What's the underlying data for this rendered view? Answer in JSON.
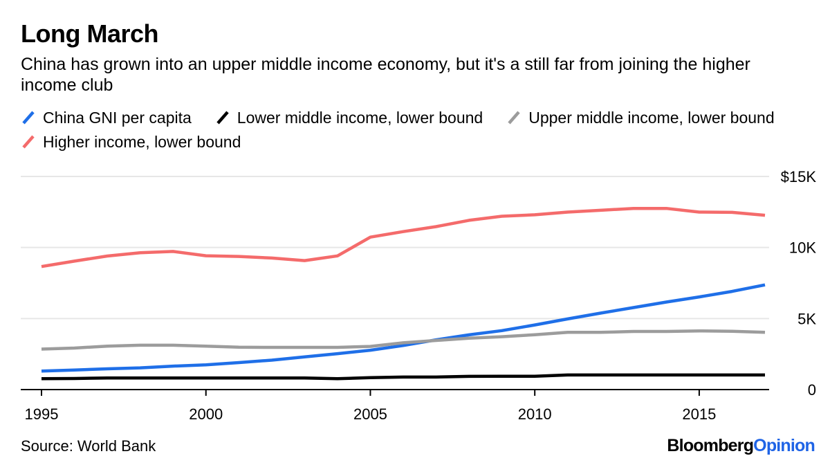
{
  "title": "Long March",
  "subtitle": "China has grown into an upper middle income economy, but it's a still far from joining the higher income club",
  "source": "Source: World Bank",
  "brand": {
    "part1": "Bloomberg",
    "part2": "Opinion"
  },
  "chart_data": {
    "type": "line",
    "title": "Long March",
    "xlabel": "",
    "ylabel": "",
    "xlim": [
      1995,
      2017
    ],
    "ylim": [
      0,
      15000
    ],
    "x_ticks": [
      1995,
      2000,
      2005,
      2010,
      2015
    ],
    "y_ticks": [
      {
        "value": 0,
        "label": "0"
      },
      {
        "value": 5000,
        "label": "5K"
      },
      {
        "value": 10000,
        "label": "10K"
      },
      {
        "value": 15000,
        "label": "$15K"
      }
    ],
    "grid": "horizontal",
    "legend_position": "top",
    "x": [
      1995,
      1996,
      1997,
      1998,
      1999,
      2000,
      2001,
      2002,
      2003,
      2004,
      2005,
      2006,
      2007,
      2008,
      2009,
      2010,
      2011,
      2012,
      2013,
      2014,
      2015,
      2016,
      2017
    ],
    "series": [
      {
        "name": "China GNI per capita",
        "color": "#1f6fe8",
        "values": [
          1300,
          1380,
          1460,
          1530,
          1650,
          1740,
          1900,
          2070,
          2300,
          2530,
          2770,
          3100,
          3500,
          3850,
          4150,
          4550,
          4970,
          5380,
          5770,
          6160,
          6520,
          6910,
          7370
        ]
      },
      {
        "name": "Lower middle income, lower bound",
        "color": "#000000",
        "values": [
          770,
          780,
          820,
          820,
          820,
          820,
          820,
          820,
          820,
          770,
          840,
          880,
          880,
          930,
          940,
          940,
          1030,
          1030,
          1030,
          1030,
          1030,
          1030,
          1030
        ]
      },
      {
        "name": "Upper middle income, lower bound",
        "color": "#9c9c9c",
        "values": [
          2850,
          2920,
          3060,
          3120,
          3120,
          3060,
          2980,
          2970,
          2970,
          2970,
          3040,
          3290,
          3460,
          3620,
          3720,
          3860,
          4030,
          4030,
          4090,
          4090,
          4130,
          4100,
          4030
        ]
      },
      {
        "name": "Higher income, lower bound",
        "color": "#f46b6b",
        "values": [
          8660,
          9040,
          9400,
          9630,
          9720,
          9420,
          9370,
          9260,
          9080,
          9410,
          10730,
          11120,
          11470,
          11910,
          12200,
          12300,
          12490,
          12620,
          12750,
          12750,
          12490,
          12470,
          12270
        ]
      }
    ]
  }
}
